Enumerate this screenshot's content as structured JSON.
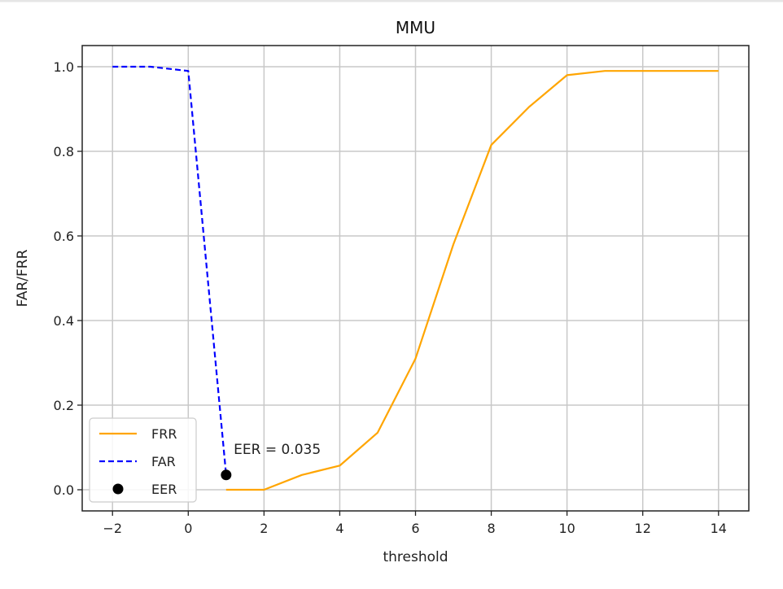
{
  "chart_data": {
    "type": "line",
    "title": "MMU",
    "xlabel": "threshold",
    "ylabel": "FAR/FRR",
    "xlim": [
      -2.8,
      14.8
    ],
    "ylim": [
      -0.05,
      1.05
    ],
    "xticks": [
      -2,
      0,
      2,
      4,
      6,
      8,
      10,
      12,
      14
    ],
    "xtick_labels": [
      "−2",
      "0",
      "2",
      "4",
      "6",
      "8",
      "10",
      "12",
      "14"
    ],
    "yticks": [
      0.0,
      0.2,
      0.4,
      0.6,
      0.8,
      1.0
    ],
    "ytick_labels": [
      "0.0",
      "0.2",
      "0.4",
      "0.6",
      "0.8",
      "1.0"
    ],
    "grid": true,
    "legend_position": "lower-left",
    "series": [
      {
        "name": "FRR",
        "style": "solid",
        "color": "#ffa500",
        "x": [
          1,
          2,
          3,
          4,
          5,
          6,
          7,
          8,
          9,
          10,
          11,
          12,
          13,
          14
        ],
        "y": [
          0.0,
          0.0,
          0.035,
          0.057,
          0.135,
          0.31,
          0.58,
          0.815,
          0.905,
          0.98,
          0.99,
          0.99,
          0.99,
          0.99
        ]
      },
      {
        "name": "FAR",
        "style": "dashed",
        "color": "#0000ff",
        "x": [
          -2,
          -1,
          0,
          1
        ],
        "y": [
          1.0,
          1.0,
          0.99,
          0.035
        ]
      }
    ],
    "points": [
      {
        "name": "EER",
        "color": "#000000",
        "x": 1,
        "y": 0.035
      }
    ],
    "annotations": [
      {
        "text": "EER = 0.035",
        "x": 1.2,
        "y": 0.085
      }
    ]
  }
}
